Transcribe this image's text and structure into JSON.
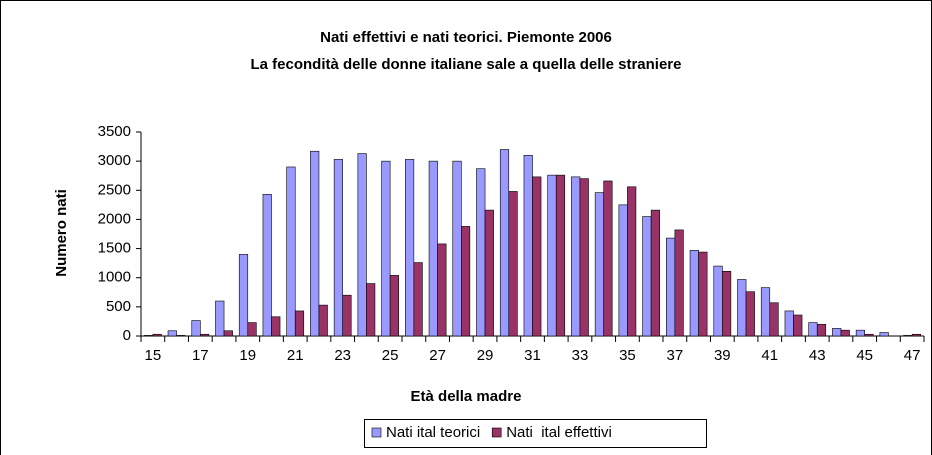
{
  "chart_data": {
    "type": "bar",
    "title": "Nati effettivi e nati teorici. Piemonte 2006",
    "subtitle": "La fecondità delle donne italiane sale a quella delle straniere",
    "x_label": "Età della madre",
    "y_label": "Numero nati",
    "categories": [
      "15",
      null,
      "17",
      null,
      "19",
      null,
      "21",
      null,
      "23",
      null,
      "25",
      null,
      "27",
      null,
      "29",
      null,
      "31",
      null,
      "33",
      null,
      "35",
      null,
      "37",
      null,
      "39",
      null,
      "41",
      null,
      "43",
      null,
      "45",
      null,
      "47"
    ],
    "series": [
      {
        "name": "Nati ital teorici",
        "color": "#9999ff",
        "values": [
          10,
          90,
          265,
          600,
          1400,
          2430,
          2900,
          3170,
          3030,
          3130,
          3000,
          3030,
          3000,
          3000,
          2870,
          3200,
          3100,
          2760,
          2730,
          2460,
          2250,
          2050,
          1680,
          1470,
          1200,
          970,
          830,
          430,
          230,
          130,
          100,
          60,
          10
        ]
      },
      {
        "name": "Nati  ital effettivi",
        "color": "#993366",
        "values": [
          30,
          10,
          30,
          90,
          230,
          330,
          430,
          530,
          700,
          900,
          1040,
          1260,
          1580,
          1880,
          2160,
          2480,
          2730,
          2760,
          2700,
          2660,
          2560,
          2160,
          1820,
          1440,
          1110,
          760,
          570,
          360,
          200,
          100,
          30,
          0,
          30
        ]
      }
    ],
    "ylim": [
      0,
      3500
    ],
    "yticks": [
      0,
      500,
      1000,
      1500,
      2000,
      2500,
      3000,
      3500
    ],
    "legend": "bottom"
  }
}
